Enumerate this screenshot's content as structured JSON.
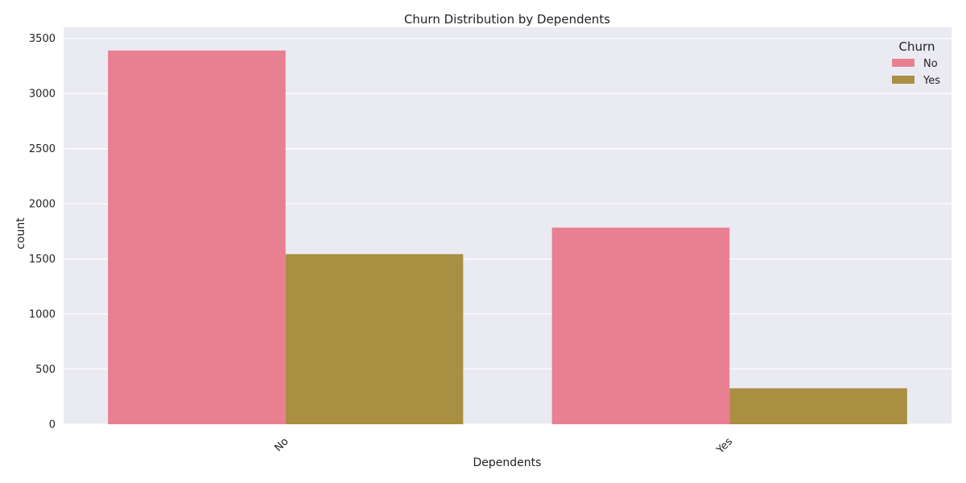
{
  "chart_data": {
    "type": "bar",
    "title": "Churn Distribution by Dependents",
    "xlabel": "Dependents",
    "ylabel": "count",
    "categories": [
      "No",
      "Yes"
    ],
    "series": [
      {
        "name": "No",
        "values": [
          3390,
          1784
        ],
        "color": "#e88092"
      },
      {
        "name": "Yes",
        "values": [
          1543,
          326
        ],
        "color": "#aa8e41"
      }
    ],
    "ylim": [
      0,
      3600
    ],
    "yticks": [
      0,
      500,
      1000,
      1500,
      2000,
      2500,
      3000,
      3500
    ],
    "grid": true,
    "legend": {
      "title": "Churn",
      "placement": "top-right"
    },
    "background_color": "#eaeaf2"
  }
}
